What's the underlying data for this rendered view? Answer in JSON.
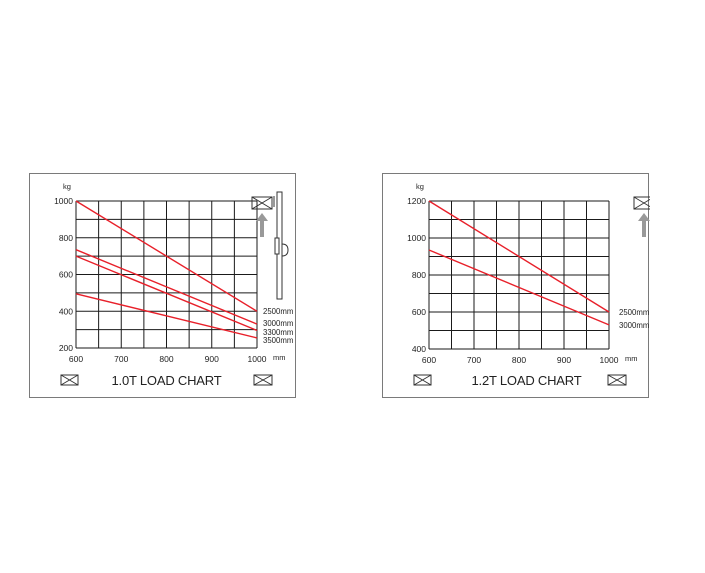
{
  "colors": {
    "line": "#e8202a",
    "grid": "#1a1a1a",
    "text": "#222222",
    "icon": "#999999"
  },
  "chart_data": [
    {
      "type": "line",
      "title": "1.0T LOAD CHART",
      "xlabel": "mm",
      "ylabel": "kg",
      "xlim": [
        600,
        1000
      ],
      "ylim": [
        200,
        1000
      ],
      "xticks": [
        600,
        700,
        800,
        900,
        1000
      ],
      "yticks": [
        200,
        400,
        600,
        800,
        1000
      ],
      "grid": true,
      "series": [
        {
          "name": "2500mm",
          "x": [
            600,
            1000
          ],
          "y": [
            1000,
            400
          ]
        },
        {
          "name": "3000mm",
          "x": [
            600,
            1000
          ],
          "y": [
            735,
            330
          ]
        },
        {
          "name": "3300mm",
          "x": [
            600,
            1000
          ],
          "y": [
            700,
            295
          ]
        },
        {
          "name": "3500mm",
          "x": [
            600,
            1000
          ],
          "y": [
            495,
            255
          ]
        }
      ]
    },
    {
      "type": "line",
      "title": "1.2T LOAD CHART",
      "xlabel": "mm",
      "ylabel": "kg",
      "xlim": [
        600,
        1000
      ],
      "ylim": [
        400,
        1200
      ],
      "xticks": [
        600,
        700,
        800,
        900,
        1000
      ],
      "yticks": [
        400,
        600,
        800,
        1000,
        1200
      ],
      "grid": true,
      "series": [
        {
          "name": "2500mm",
          "x": [
            600,
            1000
          ],
          "y": [
            1200,
            600
          ]
        },
        {
          "name": "3000mm",
          "x": [
            600,
            1000
          ],
          "y": [
            935,
            530
          ]
        }
      ]
    }
  ]
}
